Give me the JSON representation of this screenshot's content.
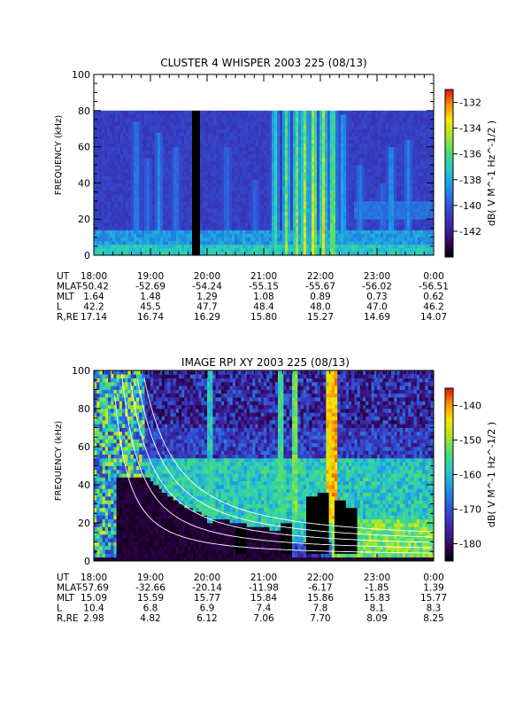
{
  "chart_data": [
    {
      "type": "heatmap",
      "title": "CLUSTER 4 WHISPER 2003 225 (08/13)",
      "xlabel": "",
      "ylabel": "FREQUENCY (kHz)",
      "xticks": [
        "18:00",
        "19:00",
        "20:00",
        "21:00",
        "22:00",
        "23:00",
        "0:00"
      ],
      "yticks": [
        "0",
        "20",
        "40",
        "60",
        "80",
        "100"
      ],
      "ylim": [
        0,
        100
      ],
      "data_ceiling_khz": 80,
      "colorbar": {
        "label": "dB( V M^-1 Hz^-1/2 )",
        "ticks": [
          "-132",
          "-134",
          "-136",
          "-138",
          "-140",
          "-142"
        ],
        "range": [
          -144,
          -131
        ]
      },
      "ephemeris": {
        "labels": [
          "UT",
          "MLAT",
          "MLT",
          "L",
          "R,RE"
        ],
        "rows": [
          [
            "18:00",
            "19:00",
            "20:00",
            "21:00",
            "22:00",
            "23:00",
            "0:00"
          ],
          [
            "-50.42",
            "-52.69",
            "-54.24",
            "-55.15",
            "-55.67",
            "-56.02",
            "-56.51"
          ],
          [
            "1.64",
            "1.48",
            "1.29",
            "1.08",
            "0.89",
            "0.73",
            "0.62"
          ],
          [
            "42.2",
            "45.5",
            "47.7",
            "48.4",
            "48.0",
            "47.0",
            "46.2"
          ],
          [
            "17.14",
            "16.74",
            "16.29",
            "15.80",
            "15.27",
            "14.69",
            "14.07"
          ]
        ]
      },
      "emission_bursts": [
        {
          "t": 18.75,
          "f_top": 75,
          "level": 0.45
        },
        {
          "t": 18.95,
          "f_top": 55,
          "level": 0.4
        },
        {
          "t": 19.15,
          "f_top": 68,
          "level": 0.45
        },
        {
          "t": 19.45,
          "f_top": 60,
          "level": 0.42
        },
        {
          "t": 20.35,
          "f_top": 60,
          "level": 0.4
        },
        {
          "t": 20.85,
          "f_top": 42,
          "level": 0.38
        },
        {
          "t": 21.2,
          "f_top": 80,
          "level": 0.7
        },
        {
          "t": 21.4,
          "f_top": 80,
          "level": 0.78
        },
        {
          "t": 21.58,
          "f_top": 80,
          "level": 0.82
        },
        {
          "t": 21.72,
          "f_top": 80,
          "level": 0.9
        },
        {
          "t": 21.88,
          "f_top": 80,
          "level": 0.98
        },
        {
          "t": 22.05,
          "f_top": 80,
          "level": 0.94
        },
        {
          "t": 22.22,
          "f_top": 80,
          "level": 0.88
        },
        {
          "t": 22.4,
          "f_top": 78,
          "level": 0.55
        },
        {
          "t": 22.7,
          "f_top": 50,
          "level": 0.45
        },
        {
          "t": 23.1,
          "f_top": 40,
          "level": 0.4
        },
        {
          "t": 23.25,
          "f_top": 60,
          "level": 0.52
        },
        {
          "t": 23.55,
          "f_top": 65,
          "level": 0.45
        }
      ],
      "data_gaps": [
        {
          "t_start": 19.75,
          "t_end": 19.86
        }
      ]
    },
    {
      "type": "heatmap",
      "title": "IMAGE RPI XY 2003 225 (08/13)",
      "xlabel": "",
      "ylabel": "FREQUENCY (kHz)",
      "xticks": [
        "18:00",
        "19:00",
        "20:00",
        "21:00",
        "22:00",
        "23:00",
        "0:00"
      ],
      "yticks": [
        "0",
        "20",
        "40",
        "60",
        "80",
        "100"
      ],
      "ylim": [
        0,
        100
      ],
      "colorbar": {
        "label": "dB( V M^-1 Hz^-1/2 )",
        "ticks": [
          "-140",
          "-150",
          "-160",
          "-170",
          "-180"
        ],
        "range": [
          -185,
          -135
        ]
      },
      "ephemeris": {
        "labels": [
          "UT",
          "MLAT",
          "MLT",
          "L",
          "R,RE"
        ],
        "rows": [
          [
            "18:00",
            "19:00",
            "20:00",
            "21:00",
            "22:00",
            "23:00",
            "0:00"
          ],
          [
            "-57.69",
            "-32.66",
            "-20.14",
            "-11.98",
            "-6.17",
            "-1.85",
            "1.39"
          ],
          [
            "15.09",
            "15.59",
            "15.77",
            "15.84",
            "15.86",
            "15.83",
            "15.77"
          ],
          [
            "10.4",
            "6.8",
            "6.9",
            "7.4",
            "7.8",
            "8.1",
            "8.3"
          ],
          [
            "2.98",
            "4.82",
            "6.12",
            "7.06",
            "7.70",
            "8.09",
            "8.25"
          ]
        ]
      },
      "cutoff_curves_khz_at_0000": [
        3,
        5,
        7,
        9,
        11
      ],
      "black_blobs": [
        {
          "t": 21.88,
          "f_top": 35
        },
        {
          "t": 22.05,
          "f_top": 37
        },
        {
          "t": 22.35,
          "f_top": 32
        },
        {
          "t": 22.52,
          "f_top": 28
        },
        {
          "t": 21.4,
          "f_top": 20
        },
        {
          "t": 20.6,
          "f_top": 18
        }
      ]
    }
  ]
}
